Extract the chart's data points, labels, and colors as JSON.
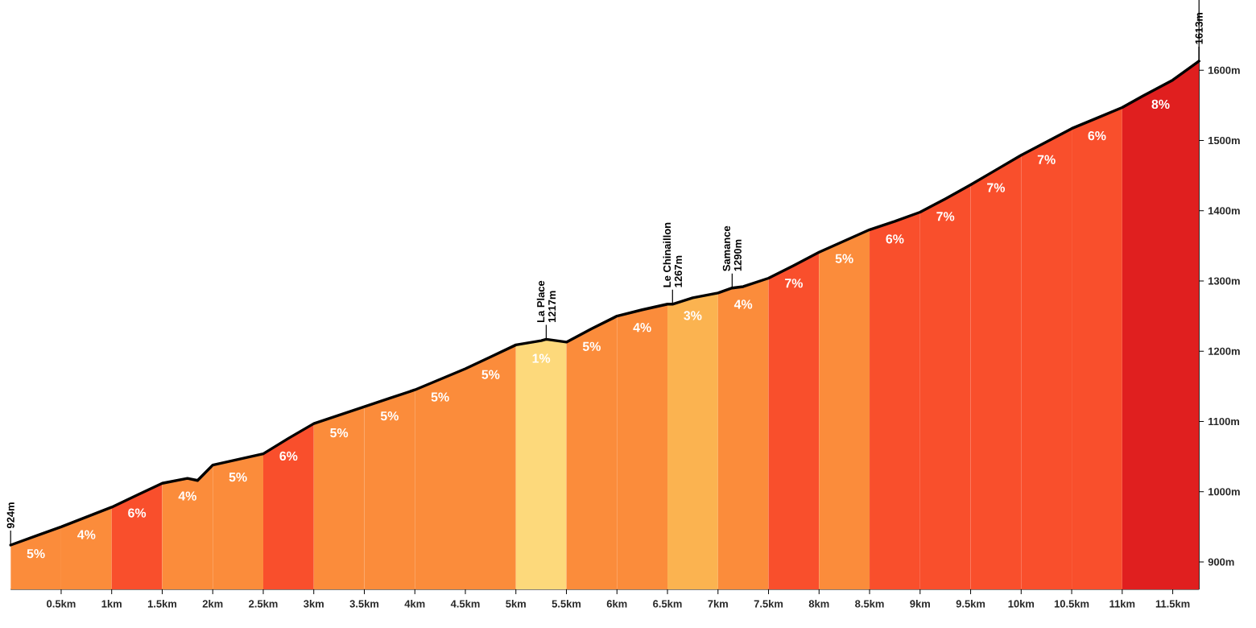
{
  "chart_data": {
    "type": "line",
    "xlim": [
      0,
      11.76
    ],
    "ylim": [
      861,
      1700
    ],
    "xticks": [
      {
        "value": 0.5,
        "label": "0.5km"
      },
      {
        "value": 1,
        "label": "1km"
      },
      {
        "value": 1.5,
        "label": "1.5km"
      },
      {
        "value": 2,
        "label": "2km"
      },
      {
        "value": 2.5,
        "label": "2.5km"
      },
      {
        "value": 3,
        "label": "3km"
      },
      {
        "value": 3.5,
        "label": "3.5km"
      },
      {
        "value": 4,
        "label": "4km"
      },
      {
        "value": 4.5,
        "label": "4.5km"
      },
      {
        "value": 5,
        "label": "5km"
      },
      {
        "value": 5.5,
        "label": "5.5km"
      },
      {
        "value": 6,
        "label": "6km"
      },
      {
        "value": 6.5,
        "label": "6.5km"
      },
      {
        "value": 7,
        "label": "7km"
      },
      {
        "value": 7.5,
        "label": "7.5km"
      },
      {
        "value": 8,
        "label": "8km"
      },
      {
        "value": 8.5,
        "label": "8.5km"
      },
      {
        "value": 9,
        "label": "9km"
      },
      {
        "value": 9.5,
        "label": "9.5km"
      },
      {
        "value": 10,
        "label": "10km"
      },
      {
        "value": 10.5,
        "label": "10.5km"
      },
      {
        "value": 11,
        "label": "11km"
      },
      {
        "value": 11.5,
        "label": "11.5km"
      }
    ],
    "yticks": [
      {
        "value": 900,
        "label": "900m"
      },
      {
        "value": 1000,
        "label": "1000m"
      },
      {
        "value": 1100,
        "label": "1100m"
      },
      {
        "value": 1200,
        "label": "1200m"
      },
      {
        "value": 1300,
        "label": "1300m"
      },
      {
        "value": 1400,
        "label": "1400m"
      },
      {
        "value": 1500,
        "label": "1500m"
      },
      {
        "value": 1600,
        "label": "1600m"
      }
    ],
    "series": [
      {
        "color": "#000000",
        "x": [
          0,
          0.25,
          0.5,
          0.75,
          1,
          1.25,
          1.5,
          1.75,
          1.85,
          2,
          2.25,
          2.5,
          2.75,
          3,
          3.25,
          3.5,
          3.75,
          4,
          4.25,
          4.5,
          4.75,
          5,
          5.25,
          5.3,
          5.5,
          5.75,
          6,
          6.25,
          6.5,
          6.55,
          6.75,
          7,
          7.14,
          7.25,
          7.5,
          7.75,
          8,
          8.25,
          8.5,
          8.75,
          9,
          9.25,
          9.5,
          9.75,
          10,
          10.25,
          10.5,
          10.75,
          11,
          11.2,
          11.5,
          11.76
        ],
        "values": [
          924,
          937,
          950,
          964,
          978,
          995,
          1012,
          1019,
          1016,
          1038,
          1046,
          1054,
          1076,
          1097,
          1109,
          1121,
          1133,
          1145,
          1160,
          1175,
          1192,
          1209,
          1215,
          1217,
          1213,
          1232,
          1250,
          1259,
          1267,
          1267,
          1276,
          1283,
          1290,
          1292,
          1304,
          1322,
          1341,
          1357,
          1373,
          1385,
          1398,
          1417,
          1437,
          1458,
          1479,
          1498,
          1517,
          1532,
          1547,
          1563,
          1586,
          1613
        ]
      }
    ],
    "bands": [
      {
        "axis": "x",
        "from": 0,
        "to": 0.5,
        "label": "5%",
        "color": "#fb8c3b"
      },
      {
        "axis": "x",
        "from": 0.5,
        "to": 1,
        "label": "4%",
        "color": "#fb8c3b"
      },
      {
        "axis": "x",
        "from": 1,
        "to": 1.5,
        "label": "6%",
        "color": "#f94f2c"
      },
      {
        "axis": "x",
        "from": 1.5,
        "to": 2,
        "label": "4%",
        "color": "#fb8c3b"
      },
      {
        "axis": "x",
        "from": 2,
        "to": 2.5,
        "label": "5%",
        "color": "#fb8c3b"
      },
      {
        "axis": "x",
        "from": 2.5,
        "to": 3,
        "label": "6%",
        "color": "#f94f2c"
      },
      {
        "axis": "x",
        "from": 3,
        "to": 3.5,
        "label": "5%",
        "color": "#fb8c3b"
      },
      {
        "axis": "x",
        "from": 3.5,
        "to": 4,
        "label": "5%",
        "color": "#fb8c3b"
      },
      {
        "axis": "x",
        "from": 4,
        "to": 4.5,
        "label": "5%",
        "color": "#fb8c3b"
      },
      {
        "axis": "x",
        "from": 4.5,
        "to": 5,
        "label": "5%",
        "color": "#fb8c3b"
      },
      {
        "axis": "x",
        "from": 5,
        "to": 5.5,
        "label": "1%",
        "color": "#fdd97b"
      },
      {
        "axis": "x",
        "from": 5.5,
        "to": 6,
        "label": "5%",
        "color": "#fb8c3b"
      },
      {
        "axis": "x",
        "from": 6,
        "to": 6.5,
        "label": "4%",
        "color": "#fb8c3b"
      },
      {
        "axis": "x",
        "from": 6.5,
        "to": 7,
        "label": "3%",
        "color": "#fbb350"
      },
      {
        "axis": "x",
        "from": 7,
        "to": 7.5,
        "label": "4%",
        "color": "#fb8c3b"
      },
      {
        "axis": "x",
        "from": 7.5,
        "to": 8,
        "label": "7%",
        "color": "#f94f2c"
      },
      {
        "axis": "x",
        "from": 8,
        "to": 8.5,
        "label": "5%",
        "color": "#fb8c3b"
      },
      {
        "axis": "x",
        "from": 8.5,
        "to": 9,
        "label": "6%",
        "color": "#f94f2c"
      },
      {
        "axis": "x",
        "from": 9,
        "to": 9.5,
        "label": "7%",
        "color": "#f94f2c"
      },
      {
        "axis": "x",
        "from": 9.5,
        "to": 10,
        "label": "7%",
        "color": "#f94f2c"
      },
      {
        "axis": "x",
        "from": 10,
        "to": 10.5,
        "label": "7%",
        "color": "#f94f2c"
      },
      {
        "axis": "x",
        "from": 10.5,
        "to": 11,
        "label": "6%",
        "color": "#f94f2c"
      },
      {
        "axis": "x",
        "from": 11,
        "to": 11.76,
        "label": "8%",
        "color": "#e01f1f"
      }
    ],
    "annotations": [
      {
        "text": "924m",
        "x": 0,
        "y": 924
      },
      {
        "text": "La Place",
        "x": 5.3,
        "y": 1217
      },
      {
        "text": "1217m",
        "x": 5.3,
        "y": 1217
      },
      {
        "text": "Le Chinaillon",
        "x": 6.55,
        "y": 1267
      },
      {
        "text": "1267m",
        "x": 6.55,
        "y": 1267
      },
      {
        "text": "Samance",
        "x": 7.14,
        "y": 1290
      },
      {
        "text": "1290m",
        "x": 7.14,
        "y": 1290
      },
      {
        "text": "1613m",
        "x": 11.76,
        "y": 1613
      }
    ]
  }
}
